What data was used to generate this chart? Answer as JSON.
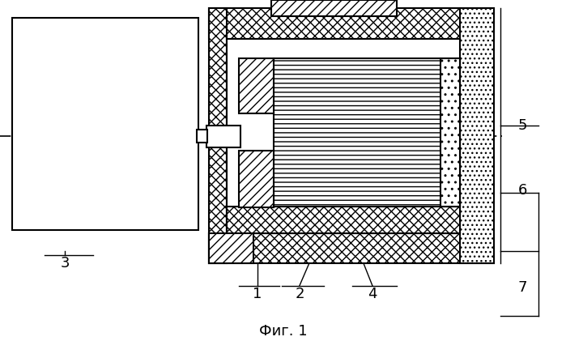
{
  "title": "Фиг. 1",
  "bg_color": "#ffffff",
  "line_color": "#000000",
  "label_fontsize": 13,
  "title_fontsize": 13
}
